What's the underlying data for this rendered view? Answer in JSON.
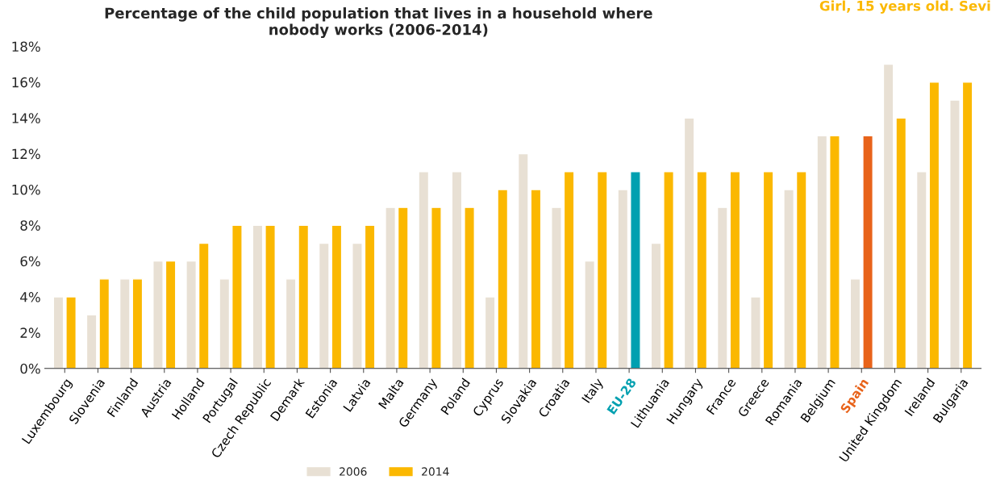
{
  "chart_data": {
    "type": "bar",
    "title": "Percentage of the child population that lives in a household where\nnobody works (2006-2014)",
    "annotations": [
      "Girl, 15 years old. Sevi"
    ],
    "categories": [
      "Luxembourg",
      "Slovenia",
      "Finland",
      "Austria",
      "Holland",
      "Portugal",
      "Czech Republic",
      "Demark",
      "Estonia",
      "Latvia",
      "Malta",
      "Germany",
      "Poland",
      "Cyprus",
      "Slovakia",
      "Croatia",
      "Italy",
      "EU-28",
      "Lithuania",
      "Hungary",
      "France",
      "Greece",
      "Romania",
      "Belgium",
      "Spain",
      "United Kingdom",
      "Ireland",
      "Bulgaria"
    ],
    "series": [
      {
        "name": "2006",
        "color": "#e8e0d4",
        "values": [
          4,
          3,
          5,
          6,
          6,
          5,
          8,
          5,
          7,
          7,
          9,
          11,
          11,
          4,
          12,
          9,
          6,
          10,
          7,
          14,
          9,
          4,
          10,
          13,
          5,
          17,
          11,
          15
        ]
      },
      {
        "name": "2014",
        "color": "#fbb800",
        "colors": [
          "#fbb800",
          "#fbb800",
          "#fbb800",
          "#fbb800",
          "#fbb800",
          "#fbb800",
          "#fbb800",
          "#fbb800",
          "#fbb800",
          "#fbb800",
          "#fbb800",
          "#fbb800",
          "#fbb800",
          "#fbb800",
          "#fbb800",
          "#fbb800",
          "#fbb800",
          "#00a0b0",
          "#fbb800",
          "#fbb800",
          "#fbb800",
          "#fbb800",
          "#fbb800",
          "#fbb800",
          "#e8631a",
          "#fbb800",
          "#fbb800",
          "#fbb800"
        ],
        "values": [
          4,
          5,
          5,
          6,
          7,
          8,
          8,
          8,
          8,
          8,
          9,
          9,
          9,
          10,
          10,
          11,
          11,
          11,
          11,
          11,
          11,
          11,
          11,
          13,
          13,
          14,
          16,
          16
        ]
      }
    ],
    "ylim": [
      0,
      18
    ],
    "yticks": [
      {
        "value": 0,
        "label": "0%"
      },
      {
        "value": 2,
        "label": "2%"
      },
      {
        "value": 4,
        "label": "4%"
      },
      {
        "value": 6,
        "label": "6%"
      },
      {
        "value": 8,
        "label": "8%"
      },
      {
        "value": 10,
        "label": "10%"
      },
      {
        "value": 12,
        "label": "12%"
      },
      {
        "value": 14,
        "label": "14%"
      },
      {
        "value": 16,
        "label": "16%"
      },
      {
        "value": 18,
        "label": "18%"
      }
    ],
    "grid": false,
    "legend": "bottom"
  }
}
